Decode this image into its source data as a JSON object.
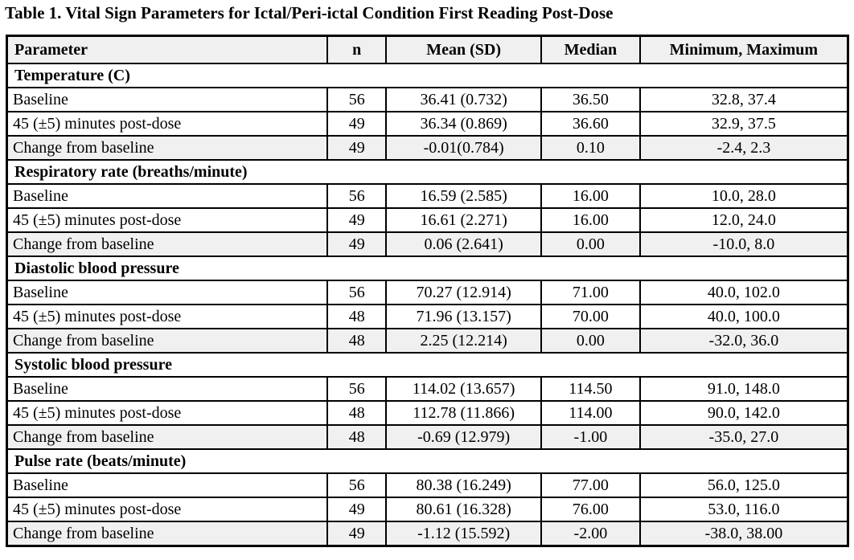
{
  "page": {
    "title": "Table 1. Vital Sign Parameters for Ictal/Peri-ictal Condition First Reading Post-Dose"
  },
  "colors": {
    "header_bg": "#f0f0f0",
    "shaded_row_bg": "#f0f0f0",
    "border": "#000000",
    "text": "#000000"
  },
  "table": {
    "headers": [
      "Parameter",
      "n",
      "Mean (SD)",
      "Median",
      "Minimum, Maximum"
    ],
    "sections": [
      {
        "label": "Temperature (C)",
        "rows": [
          {
            "parameter": "Baseline",
            "n": "56",
            "mean_sd": "36.41 (0.732)",
            "median": "36.50",
            "min_max": "32.8, 37.4",
            "shaded": false
          },
          {
            "parameter": "45 (±5) minutes post-dose",
            "n": "49",
            "mean_sd": "36.34 (0.869)",
            "median": "36.60",
            "min_max": "32.9, 37.5",
            "shaded": false
          },
          {
            "parameter": "Change from baseline",
            "n": "49",
            "mean_sd": "-0.01(0.784)",
            "median": "0.10",
            "min_max": "-2.4, 2.3",
            "shaded": true
          }
        ]
      },
      {
        "label": "Respiratory rate (breaths/minute)",
        "rows": [
          {
            "parameter": "Baseline",
            "n": "56",
            "mean_sd": "16.59 (2.585)",
            "median": "16.00",
            "min_max": "10.0, 28.0",
            "shaded": false
          },
          {
            "parameter": "45 (±5) minutes post-dose",
            "n": "49",
            "mean_sd": "16.61 (2.271)",
            "median": "16.00",
            "min_max": "12.0, 24.0",
            "shaded": false
          },
          {
            "parameter": "Change from baseline",
            "n": "49",
            "mean_sd": "0.06 (2.641)",
            "median": "0.00",
            "min_max": "-10.0, 8.0",
            "shaded": true
          }
        ]
      },
      {
        "label": "Diastolic blood pressure",
        "rows": [
          {
            "parameter": "Baseline",
            "n": "56",
            "mean_sd": "70.27 (12.914)",
            "median": "71.00",
            "min_max": "40.0, 102.0",
            "shaded": false
          },
          {
            "parameter": "45 (±5) minutes post-dose",
            "n": "48",
            "mean_sd": "71.96 (13.157)",
            "median": "70.00",
            "min_max": "40.0, 100.0",
            "shaded": false
          },
          {
            "parameter": "Change from baseline",
            "n": "48",
            "mean_sd": "2.25 (12.214)",
            "median": "0.00",
            "min_max": "-32.0, 36.0",
            "shaded": true
          }
        ]
      },
      {
        "label": "Systolic blood pressure",
        "rows": [
          {
            "parameter": "Baseline",
            "n": "56",
            "mean_sd": "114.02 (13.657)",
            "median": "114.50",
            "min_max": "91.0, 148.0",
            "shaded": false
          },
          {
            "parameter": "45 (±5) minutes post-dose",
            "n": "48",
            "mean_sd": "112.78 (11.866)",
            "median": "114.00",
            "min_max": "90.0, 142.0",
            "shaded": false
          },
          {
            "parameter": "Change from baseline",
            "n": "48",
            "mean_sd": "-0.69 (12.979)",
            "median": "-1.00",
            "min_max": "-35.0, 27.0",
            "shaded": true
          }
        ]
      },
      {
        "label": "Pulse rate (beats/minute)",
        "rows": [
          {
            "parameter": "Baseline",
            "n": "56",
            "mean_sd": "80.38 (16.249)",
            "median": "77.00",
            "min_max": "56.0, 125.0",
            "shaded": false
          },
          {
            "parameter": "45 (±5) minutes post-dose",
            "n": "49",
            "mean_sd": "80.61 (16.328)",
            "median": "76.00",
            "min_max": "53.0, 116.0",
            "shaded": false
          },
          {
            "parameter": "Change from baseline",
            "n": "49",
            "mean_sd": "-1.12 (15.592)",
            "median": "-2.00",
            "min_max": "-38.0, 38.00",
            "shaded": true
          }
        ]
      }
    ]
  }
}
